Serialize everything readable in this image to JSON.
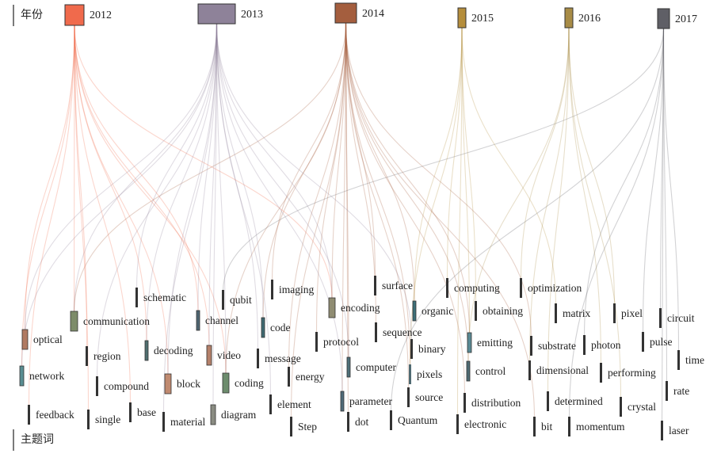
{
  "axis": {
    "top_title": "年份",
    "bottom_title": "主题词"
  },
  "years": [
    {
      "label": "2012",
      "color": "#f06a4c"
    },
    {
      "label": "2013",
      "color": "#8e8299"
    },
    {
      "label": "2014",
      "color": "#a45e3e"
    },
    {
      "label": "2015",
      "color": "#b58e3c"
    },
    {
      "label": "2016",
      "color": "#a88c46"
    },
    {
      "label": "2017",
      "color": "#5f5f66"
    }
  ],
  "keywords": [
    {
      "label": "optical",
      "color": "#b07a62",
      "years": [
        "2012",
        "2013"
      ]
    },
    {
      "label": "network",
      "color": "#5a8e93",
      "years": [
        "2012",
        "2013"
      ]
    },
    {
      "label": "feedback",
      "color": "#333333",
      "years": [
        "2012"
      ]
    },
    {
      "label": "communication",
      "color": "#7d8c6a",
      "years": [
        "2012",
        "2013",
        "2014"
      ]
    },
    {
      "label": "region",
      "color": "#333333",
      "years": [
        "2012"
      ]
    },
    {
      "label": "compound",
      "color": "#333333",
      "years": [
        "2013"
      ]
    },
    {
      "label": "single",
      "color": "#333333",
      "years": [
        "2012"
      ]
    },
    {
      "label": "schematic",
      "color": "#333333",
      "years": [
        "2013"
      ]
    },
    {
      "label": "decoding",
      "color": "#4f6f70",
      "years": [
        "2013",
        "2012"
      ]
    },
    {
      "label": "base",
      "color": "#333333",
      "years": [
        "2012"
      ]
    },
    {
      "label": "block",
      "color": "#c08a70",
      "years": [
        "2012",
        "2013"
      ]
    },
    {
      "label": "material",
      "color": "#333333",
      "years": [
        "2013"
      ]
    },
    {
      "label": "channel",
      "color": "#4f6672",
      "years": [
        "2013",
        "2012"
      ]
    },
    {
      "label": "video",
      "color": "#b4806a",
      "years": [
        "2012",
        "2013"
      ]
    },
    {
      "label": "qubit",
      "color": "#333333",
      "years": [
        "2017"
      ]
    },
    {
      "label": "coding",
      "color": "#6d8c6d",
      "years": [
        "2012",
        "2013",
        "2014"
      ]
    },
    {
      "label": "diagram",
      "color": "#8a8c82",
      "years": [
        "2013"
      ]
    },
    {
      "label": "imaging",
      "color": "#333333",
      "years": [
        "2014"
      ]
    },
    {
      "label": "code",
      "color": "#3f6a72",
      "years": [
        "2013",
        "2014"
      ]
    },
    {
      "label": "message",
      "color": "#333333",
      "years": [
        "2013"
      ]
    },
    {
      "label": "energy",
      "color": "#333333",
      "years": [
        "2014"
      ]
    },
    {
      "label": "element",
      "color": "#333333",
      "years": [
        "2013"
      ]
    },
    {
      "label": "Step",
      "color": "#333333",
      "years": [
        "2014"
      ]
    },
    {
      "label": "encoding",
      "color": "#8f8c72",
      "years": [
        "2013",
        "2012",
        "2014"
      ]
    },
    {
      "label": "protocol",
      "color": "#333333",
      "years": [
        "2014"
      ]
    },
    {
      "label": "computer",
      "color": "#4f6f78",
      "years": [
        "2014",
        "2013"
      ]
    },
    {
      "label": "parameter",
      "color": "#4f6a78",
      "years": [
        "2014",
        "2013"
      ]
    },
    {
      "label": "dot",
      "color": "#333333",
      "years": [
        "2014"
      ]
    },
    {
      "label": "surface",
      "color": "#333333",
      "years": [
        "2014"
      ]
    },
    {
      "label": "sequence",
      "color": "#333333",
      "years": [
        "2014"
      ]
    },
    {
      "label": "organic",
      "color": "#3d6f78",
      "years": [
        "2014",
        "2015"
      ]
    },
    {
      "label": "binary",
      "color": "#333333",
      "years": [
        "2013"
      ]
    },
    {
      "label": "pixels",
      "color": "#4f6a72",
      "years": [
        "2014",
        "2015"
      ]
    },
    {
      "label": "source",
      "color": "#333333",
      "years": [
        "2014"
      ]
    },
    {
      "label": "Quantum",
      "color": "#333333",
      "years": [
        "2017"
      ]
    },
    {
      "label": "computing",
      "color": "#333333",
      "years": [
        "2015"
      ]
    },
    {
      "label": "obtaining",
      "color": "#333333",
      "years": [
        "2015"
      ]
    },
    {
      "label": "emitting",
      "color": "#5a8a94",
      "years": [
        "2014",
        "2015"
      ]
    },
    {
      "label": "control",
      "color": "#4f6a72",
      "years": [
        "2014",
        "2016"
      ]
    },
    {
      "label": "distribution",
      "color": "#333333",
      "years": [
        "2014"
      ]
    },
    {
      "label": "electronic",
      "color": "#333333",
      "years": [
        "2015"
      ]
    },
    {
      "label": "optimization",
      "color": "#333333",
      "years": [
        "2016"
      ]
    },
    {
      "label": "substrate",
      "color": "#333333",
      "years": [
        "2014"
      ]
    },
    {
      "label": "dimensional",
      "color": "#333333",
      "years": [
        "2016"
      ]
    },
    {
      "label": "determined",
      "color": "#333333",
      "years": [
        "2016"
      ]
    },
    {
      "label": "bit",
      "color": "#333333",
      "years": [
        "2014"
      ]
    },
    {
      "label": "matrix",
      "color": "#333333",
      "years": [
        "2015"
      ]
    },
    {
      "label": "photon",
      "color": "#333333",
      "years": [
        "2017"
      ]
    },
    {
      "label": "performing",
      "color": "#333333",
      "years": [
        "2016"
      ]
    },
    {
      "label": "momentum",
      "color": "#333333",
      "years": [
        "2017"
      ]
    },
    {
      "label": "pixel",
      "color": "#333333",
      "years": [
        "2016"
      ]
    },
    {
      "label": "pulse",
      "color": "#333333",
      "years": [
        "2017"
      ]
    },
    {
      "label": "crystal",
      "color": "#333333",
      "years": [
        "2016"
      ]
    },
    {
      "label": "circuit",
      "color": "#333333",
      "years": [
        "2017"
      ]
    },
    {
      "label": "time",
      "color": "#333333",
      "years": [
        "2017"
      ]
    },
    {
      "label": "rate",
      "color": "#333333",
      "years": [
        "2017"
      ]
    },
    {
      "label": "laser",
      "color": "#333333",
      "years": [
        "2017"
      ]
    }
  ]
}
